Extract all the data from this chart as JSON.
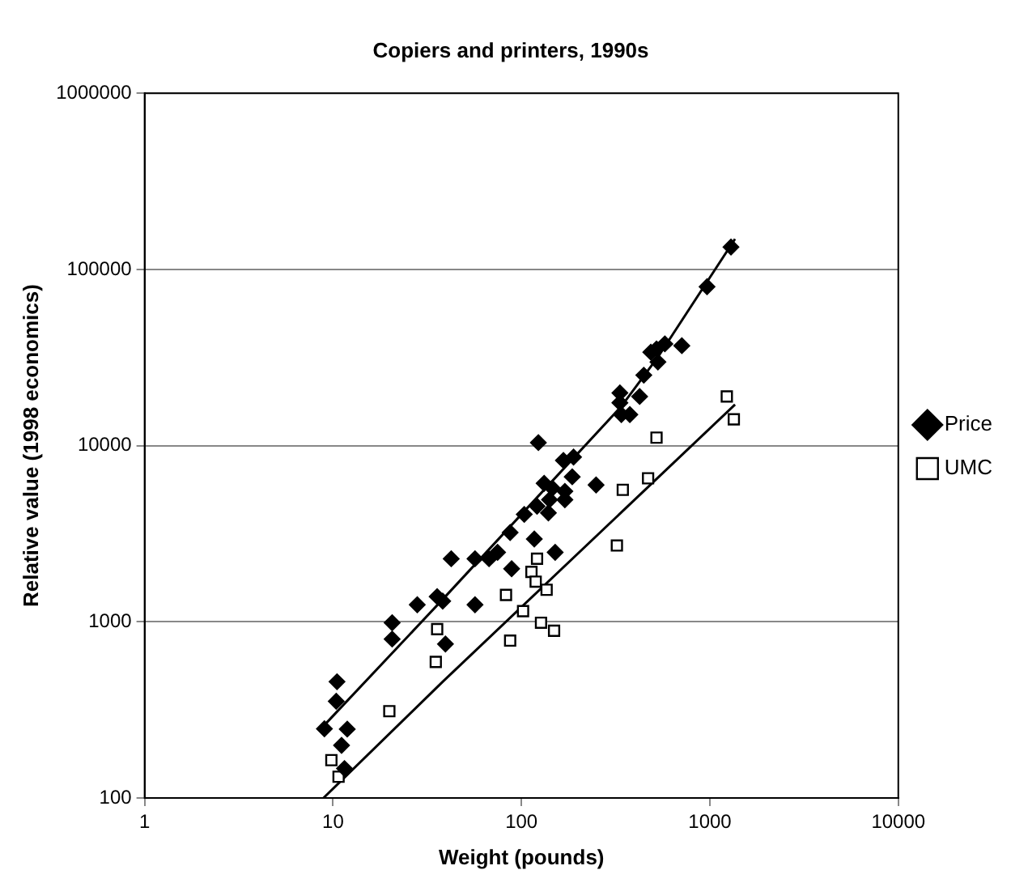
{
  "chart_data": {
    "type": "scatter",
    "title": "Copiers and printers, 1990s",
    "xlabel": "Weight (pounds)",
    "ylabel": "Relative value (1998 economics)",
    "log": "xy",
    "grid": "y",
    "legend": "right",
    "xlim": [
      1,
      10000
    ],
    "xticks": [
      1,
      10,
      100,
      1000,
      10000
    ],
    "ylim": [
      100,
      1000000
    ],
    "yticks": [
      100,
      1000,
      10000,
      100000,
      1000000
    ],
    "series": [
      {
        "name": "Price",
        "color": "#000000",
        "marker": "diamond",
        "x": [
          9,
          10.5,
          10.4,
          11.9,
          11.1,
          11.5,
          20.6,
          20.6,
          28,
          35.7,
          38.2,
          39.5,
          42.4,
          56.7,
          56.7,
          67.3,
          74.7,
          88.7,
          117,
          151,
          87.1,
          103.5,
          123,
          121,
          132,
          139,
          132,
          146,
          141,
          167,
          189,
          186,
          170,
          170,
          249,
          339,
          376,
          333,
          333,
          339,
          424,
          446,
          486,
          530,
          521,
          577,
          710,
          918,
          966,
          1294
        ],
        "values": [
          247,
          457,
          354,
          246,
          199,
          147,
          988,
          798,
          1250,
          1390,
          1310,
          748,
          2280,
          2280,
          1250,
          2280,
          2480,
          2000,
          2950,
          2480,
          3210,
          4070,
          10400,
          4530,
          null,
          4150,
          6110,
          5730,
          4930,
          8240,
          8610,
          6650,
          5500,
          4930,
          5980,
          null,
          15000,
          19900,
          17500,
          15000,
          19000,
          25100,
          33900,
          29800,
          35400,
          37800,
          36900,
          null,
          79800,
          134000
        ]
      },
      {
        "name": "UMC",
        "color": "#000000",
        "marker": "square",
        "x": [
          9.8,
          10.7,
          19.9,
          35.1,
          35.7,
          82.8,
          87.1,
          90.2,
          102,
          113,
          121,
          119,
          127,
          136,
          149,
          321,
          345,
          470,
          521,
          1230,
          1340
        ],
        "values": [
          164,
          132,
          311,
          592,
          908,
          1420,
          782,
          null,
          1150,
          1920,
          2280,
          1690,
          988,
          1520,
          889,
          2710,
          5610,
          6520,
          11100,
          19000,
          14100
        ]
      },
      {
        "type": "line",
        "color": "#000000",
        "marker": "none",
        "x": [
          8.9,
          38.2,
          339,
          530,
          1360
        ],
        "values": [
          256,
          1340,
          16700,
          31800,
          149000
        ]
      },
      {
        "type": "line",
        "color": "#000000",
        "marker": "none",
        "x": [
          8.9,
          38.2,
          1360
        ],
        "values": [
          100,
          457,
          17100
        ]
      }
    ]
  }
}
